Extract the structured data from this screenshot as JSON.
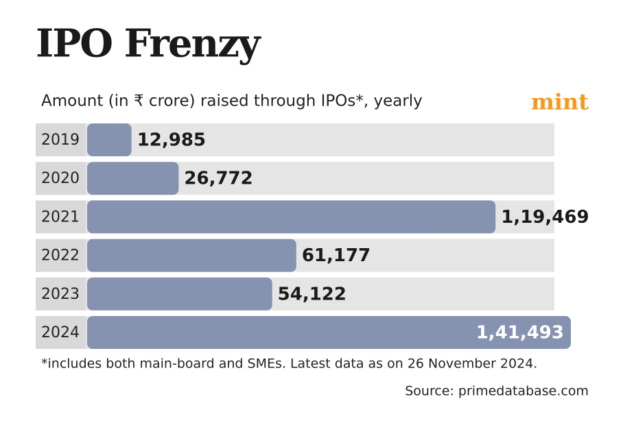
{
  "chart_data": {
    "type": "bar",
    "orientation": "horizontal",
    "title": "IPO Frenzy",
    "subtitle": "Amount (in ₹ crore) raised through IPOs*, yearly",
    "brand": "mint",
    "categories": [
      "2019",
      "2020",
      "2021",
      "2022",
      "2023",
      "2024"
    ],
    "values": [
      12985,
      26772,
      119469,
      61177,
      54122,
      141493
    ],
    "value_labels": [
      "12,985",
      "26,772",
      "1,19,469",
      "61,177",
      "54,122",
      "1,41,493"
    ],
    "color": "#8592b0",
    "footnote": "*includes both main-board and SMEs. Latest data as on 26 November 2024.",
    "source": "Source: primedatabase.com"
  }
}
